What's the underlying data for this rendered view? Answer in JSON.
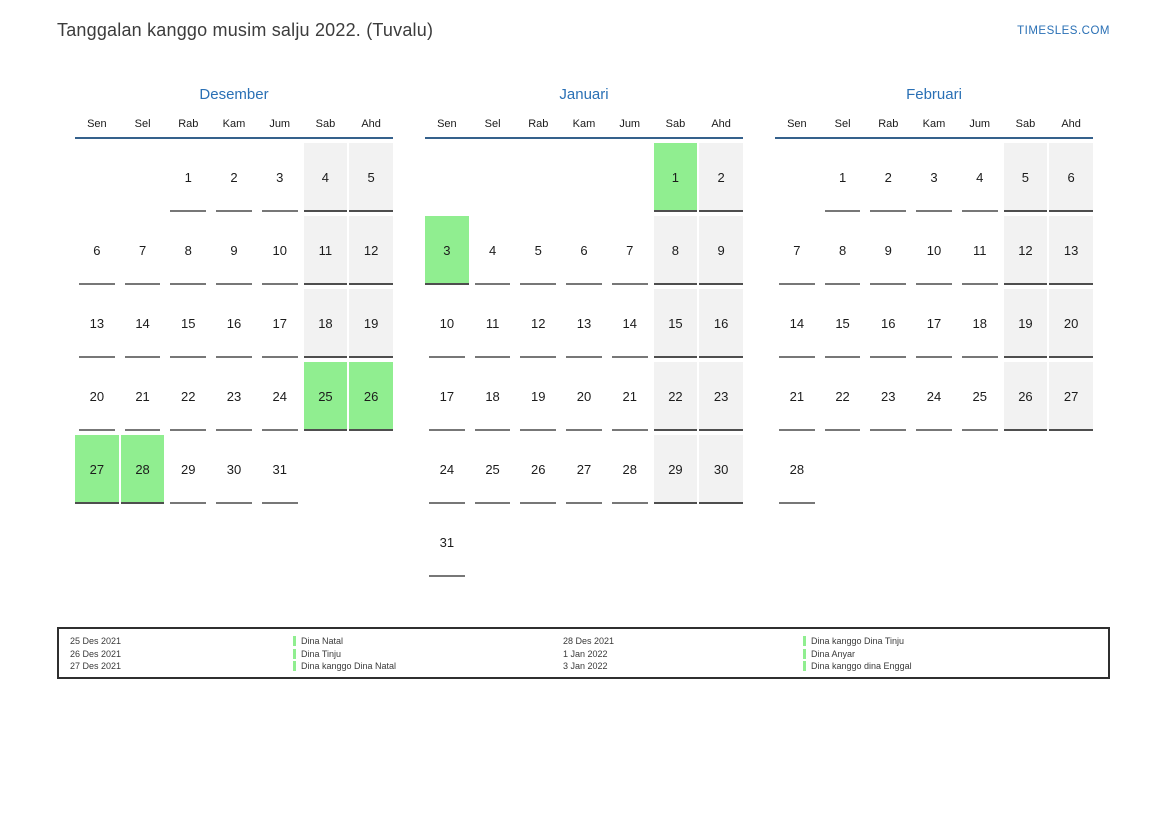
{
  "page": {
    "title": "Tanggalan kanggo musim salju 2022. (Tuvalu)",
    "site_link": "TIMESLES.COM"
  },
  "calendar": {
    "weekday_headers": [
      "Sen",
      "Sel",
      "Rab",
      "Kam",
      "Jum",
      "Sab",
      "Ahd"
    ],
    "weekend_columns": [
      5,
      6
    ],
    "months": [
      {
        "name": "Desember",
        "weeks": [
          [
            null,
            null,
            1,
            2,
            3,
            4,
            5
          ],
          [
            6,
            7,
            8,
            9,
            10,
            11,
            12
          ],
          [
            13,
            14,
            15,
            16,
            17,
            18,
            19
          ],
          [
            20,
            21,
            22,
            23,
            24,
            25,
            26
          ],
          [
            27,
            28,
            29,
            30,
            31,
            null,
            null
          ]
        ],
        "highlighted_days": [
          25,
          26,
          27,
          28
        ]
      },
      {
        "name": "Januari",
        "weeks": [
          [
            null,
            null,
            null,
            null,
            null,
            1,
            2
          ],
          [
            3,
            4,
            5,
            6,
            7,
            8,
            9
          ],
          [
            10,
            11,
            12,
            13,
            14,
            15,
            16
          ],
          [
            17,
            18,
            19,
            20,
            21,
            22,
            23
          ],
          [
            24,
            25,
            26,
            27,
            28,
            29,
            30
          ],
          [
            31,
            null,
            null,
            null,
            null,
            null,
            null
          ]
        ],
        "highlighted_days": [
          1,
          3
        ]
      },
      {
        "name": "Februari",
        "weeks": [
          [
            null,
            1,
            2,
            3,
            4,
            5,
            6
          ],
          [
            7,
            8,
            9,
            10,
            11,
            12,
            13
          ],
          [
            14,
            15,
            16,
            17,
            18,
            19,
            20
          ],
          [
            21,
            22,
            23,
            24,
            25,
            26,
            27
          ],
          [
            28,
            null,
            null,
            null,
            null,
            null,
            null
          ]
        ],
        "highlighted_days": []
      }
    ]
  },
  "legend": {
    "groups": [
      {
        "entries": [
          {
            "date": "25 Des 2021",
            "label": "Dina Natal"
          },
          {
            "date": "26 Des 2021",
            "label": "Dina Tinju"
          },
          {
            "date": "27 Des 2021",
            "label": "Dina kanggo Dina Natal"
          }
        ]
      },
      {
        "entries": [
          {
            "date": "28 Des 2021",
            "label": "Dina kanggo Dina Tinju"
          },
          {
            "date": "1 Jan 2022",
            "label": "Dina Anyar"
          },
          {
            "date": "3 Jan 2022",
            "label": "Dina kanggo dina Enggal"
          }
        ]
      }
    ]
  },
  "colors": {
    "accent_blue": "#2a70b5",
    "header_line": "#35618c",
    "weekend_bg": "#f2f2f2",
    "highlight_green": "#90ee90",
    "legend_marker_green": "#90ee90"
  }
}
